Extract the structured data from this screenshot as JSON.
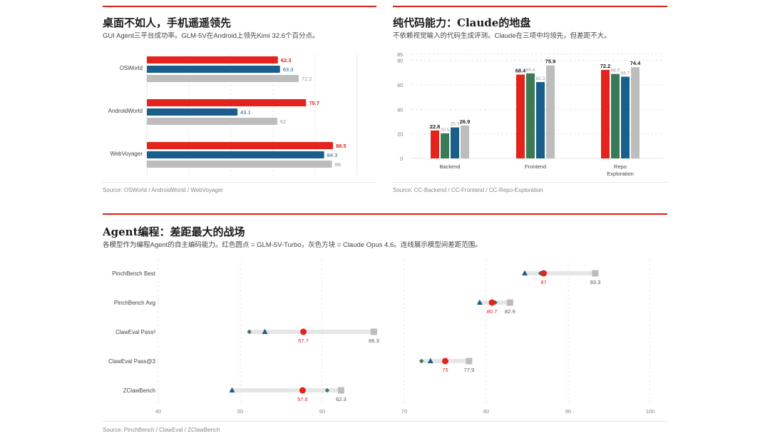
{
  "colors": {
    "red": "#e3231c",
    "blue": "#1a5f8c",
    "green": "#3a7a55",
    "gray": "#bdbdbd",
    "rule": "#d9231b"
  },
  "panel1": {
    "title": "桌面不如人，手机遥遥领先",
    "subtitle": "GUI Agent三平台成功率。GLM-5V在Android上领先Kimi 32.6个百分点。",
    "source": "Source: OSWorld / AndroidWorld / WebVoyager"
  },
  "panel2": {
    "title_cn": "纯代码能力：",
    "title_brand": "Claude",
    "title_cn2": "的地盘",
    "subtitle": "不依赖视觉输入的代码生成评测。Claude在三项中均领先，但差距不大。",
    "source": "Source: CC-Backend / CC-Frontend / CC-Repo-Exploration"
  },
  "panel3": {
    "title_brand": "Agent",
    "title_cn": "编程：差距最大的战场",
    "subtitle": "各模型作为编程Agent的自主编码能力。红色圆点 = GLM-5V-Turbo，灰色方块 = Claude Opus 4.6。连线展示模型间差距范围。",
    "source": "Source: PinchBench / ClawEval / ZClawBench"
  },
  "chart_data": [
    {
      "type": "bar",
      "orientation": "horizontal",
      "categories": [
        "OSWorld",
        "AndroidWorld",
        "WebVoyager"
      ],
      "series": [
        {
          "values": [
            62.3,
            75.7,
            88.5
          ]
        },
        {
          "values": [
            63.3,
            43.1,
            84.3
          ]
        },
        {
          "values": [
            72.2,
            62,
            88
          ]
        }
      ],
      "value_labels": [
        [
          "62.3",
          "75.7",
          "88.5"
        ],
        [
          "63.3",
          "43.1",
          "84.3"
        ],
        [
          "72.2",
          "62",
          "88"
        ]
      ],
      "xlim": [
        0,
        100
      ],
      "grid": true
    },
    {
      "type": "bar",
      "categories": [
        "Backend",
        "Frontend",
        "Repo Exploration"
      ],
      "category_lines": [
        [
          "Backend"
        ],
        [
          "Frontend"
        ],
        [
          "Repo",
          "Exploration"
        ]
      ],
      "series": [
        {
          "values": [
            22.8,
            68.4,
            72.2
          ]
        },
        {
          "values": [
            20.5,
            69.4,
            68.9
          ]
        },
        {
          "values": [
            25.3,
            62.3,
            66.7
          ]
        },
        {
          "values": [
            26.9,
            75.9,
            74.4
          ]
        }
      ],
      "value_labels": [
        [
          "22.8",
          "68.4",
          "72.2"
        ],
        [
          "20.5",
          "69.4",
          "68.9"
        ],
        [
          "25.3",
          "62.3",
          "66.7"
        ],
        [
          "26.9",
          "75.9",
          "74.4"
        ]
      ],
      "y_ticks": [
        "0",
        "20",
        "40",
        "60",
        "80",
        "85"
      ],
      "y_tick_values": [
        0,
        20,
        40,
        60,
        80,
        85
      ],
      "ylim": [
        0,
        85
      ],
      "grid": true
    },
    {
      "type": "scatter",
      "subtype": "dumbbell",
      "categories": [
        "PinchBench Best",
        "PinchBench Avg",
        "ClawEval Pass³",
        "ClawEval Pass@3",
        "ZClawBench"
      ],
      "series": [
        {
          "marker": "circle",
          "values": [
            87,
            80.7,
            57.7,
            75,
            57.6
          ]
        },
        {
          "marker": "square",
          "values": [
            93.3,
            82.9,
            66.3,
            77.9,
            62.3
          ]
        },
        {
          "marker": "triangle",
          "values": [
            84.7,
            79.2,
            53,
            73.2,
            49
          ]
        },
        {
          "marker": "diamond",
          "values": [
            86.6,
            81.1,
            51.1,
            72.1,
            60.6
          ]
        }
      ],
      "point_labels": {
        "circle": [
          "87",
          "80.7",
          "57.7",
          "75",
          "57.6"
        ],
        "square": [
          "93.3",
          "82.9",
          "66.3",
          "77.9",
          "62.3"
        ]
      },
      "x_ticks": [
        "40",
        "50",
        "60",
        "70",
        "80",
        "90",
        "100"
      ],
      "x_tick_values": [
        40,
        50,
        60,
        70,
        80,
        90,
        100
      ],
      "xlim": [
        40,
        100
      ],
      "grid": true
    }
  ]
}
